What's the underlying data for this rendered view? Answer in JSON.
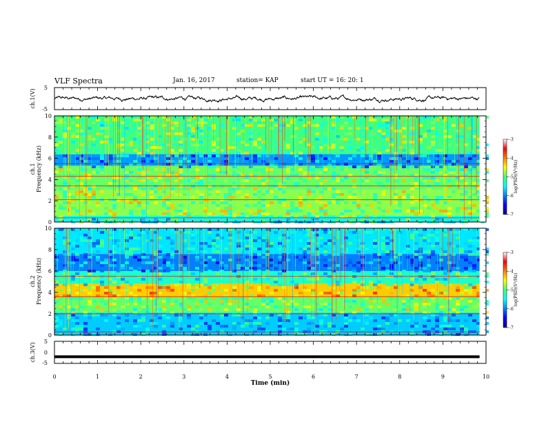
{
  "header": {
    "title": "VLF Spectra",
    "date": "Jan. 16, 2017",
    "station": "station= KAP",
    "start_time": "start  UT  =   16: 20: 1"
  },
  "chart_data": [
    {
      "type": "line",
      "panel": "ch1-waveform",
      "ylabel": "ch.1(V)",
      "yticks": [
        "5",
        "-5"
      ],
      "ylim": [
        -5,
        5
      ],
      "xlim": [
        0,
        10
      ],
      "data_end_min": 9.85,
      "typical_level_V": 0,
      "typical_range_V": [
        -1.5,
        1.5
      ],
      "color": "#000000"
    },
    {
      "type": "heatmap",
      "panel": "ch1-spectrogram",
      "ylabel_channel": "ch.1",
      "ylabel": "Frequency (kHz)",
      "xlim": [
        0,
        10
      ],
      "ylim": [
        0,
        10
      ],
      "yticks": [
        "0",
        "2",
        "4",
        "6",
        "8",
        "10"
      ],
      "colorbar": {
        "label": "log(PSD)(V²/Hz)",
        "ticks": [
          "-3",
          "-4",
          "-5",
          "-6",
          "-7"
        ],
        "range": [
          -7,
          -3
        ]
      },
      "bands": [
        {
          "from_khz": 0,
          "to_khz": 0.6,
          "level": -5.4
        },
        {
          "from_khz": 0.6,
          "to_khz": 3.0,
          "level": -4.8
        },
        {
          "from_khz": 3.0,
          "to_khz": 5.3,
          "level": -4.9
        },
        {
          "from_khz": 5.3,
          "to_khz": 6.4,
          "level": -5.9
        },
        {
          "from_khz": 6.4,
          "to_khz": 10,
          "level": -5.0
        }
      ],
      "intense_lines_khz": [
        0.4,
        2.1,
        3.4,
        4.3,
        5.5
      ]
    },
    {
      "type": "heatmap",
      "panel": "ch2-spectrogram",
      "ylabel_channel": "ch.2",
      "ylabel": "Frequency (kHz)",
      "xlim": [
        0,
        10
      ],
      "ylim": [
        0,
        10
      ],
      "yticks": [
        "0",
        "2",
        "4",
        "6",
        "8",
        "10"
      ],
      "colorbar": {
        "label": "log(PSD)(V²/Hz)",
        "ticks": [
          "-3",
          "-4",
          "-5",
          "-6",
          "-7"
        ],
        "range": [
          -7,
          -3
        ]
      },
      "bands": [
        {
          "from_khz": 0,
          "to_khz": 2.1,
          "level": -5.7
        },
        {
          "from_khz": 2.1,
          "to_khz": 3.6,
          "level": -4.9
        },
        {
          "from_khz": 3.6,
          "to_khz": 4.8,
          "level": -4.3
        },
        {
          "from_khz": 4.8,
          "to_khz": 6.0,
          "level": -5.3
        },
        {
          "from_khz": 6.0,
          "to_khz": 7.6,
          "level": -6.0
        },
        {
          "from_khz": 7.6,
          "to_khz": 10,
          "level": -5.6
        }
      ],
      "intense_lines_khz": [
        0.3,
        2.0,
        3.6,
        5.5
      ]
    },
    {
      "type": "line",
      "panel": "ch3-waveform",
      "ylabel": "ch.3(V)",
      "yticks": [
        "5",
        "0",
        "-5"
      ],
      "ylim": [
        -5,
        5
      ],
      "xlim": [
        0,
        10
      ],
      "data_end_min": 9.85,
      "level_V": -2.0,
      "color": "#000000"
    },
    {
      "type": "axis",
      "panel": "time-axis",
      "xlabel": "Time (min)",
      "xticks": [
        "0",
        "1",
        "2",
        "3",
        "4",
        "5",
        "6",
        "7",
        "8",
        "9",
        "10"
      ],
      "xlim": [
        0,
        10
      ]
    }
  ]
}
